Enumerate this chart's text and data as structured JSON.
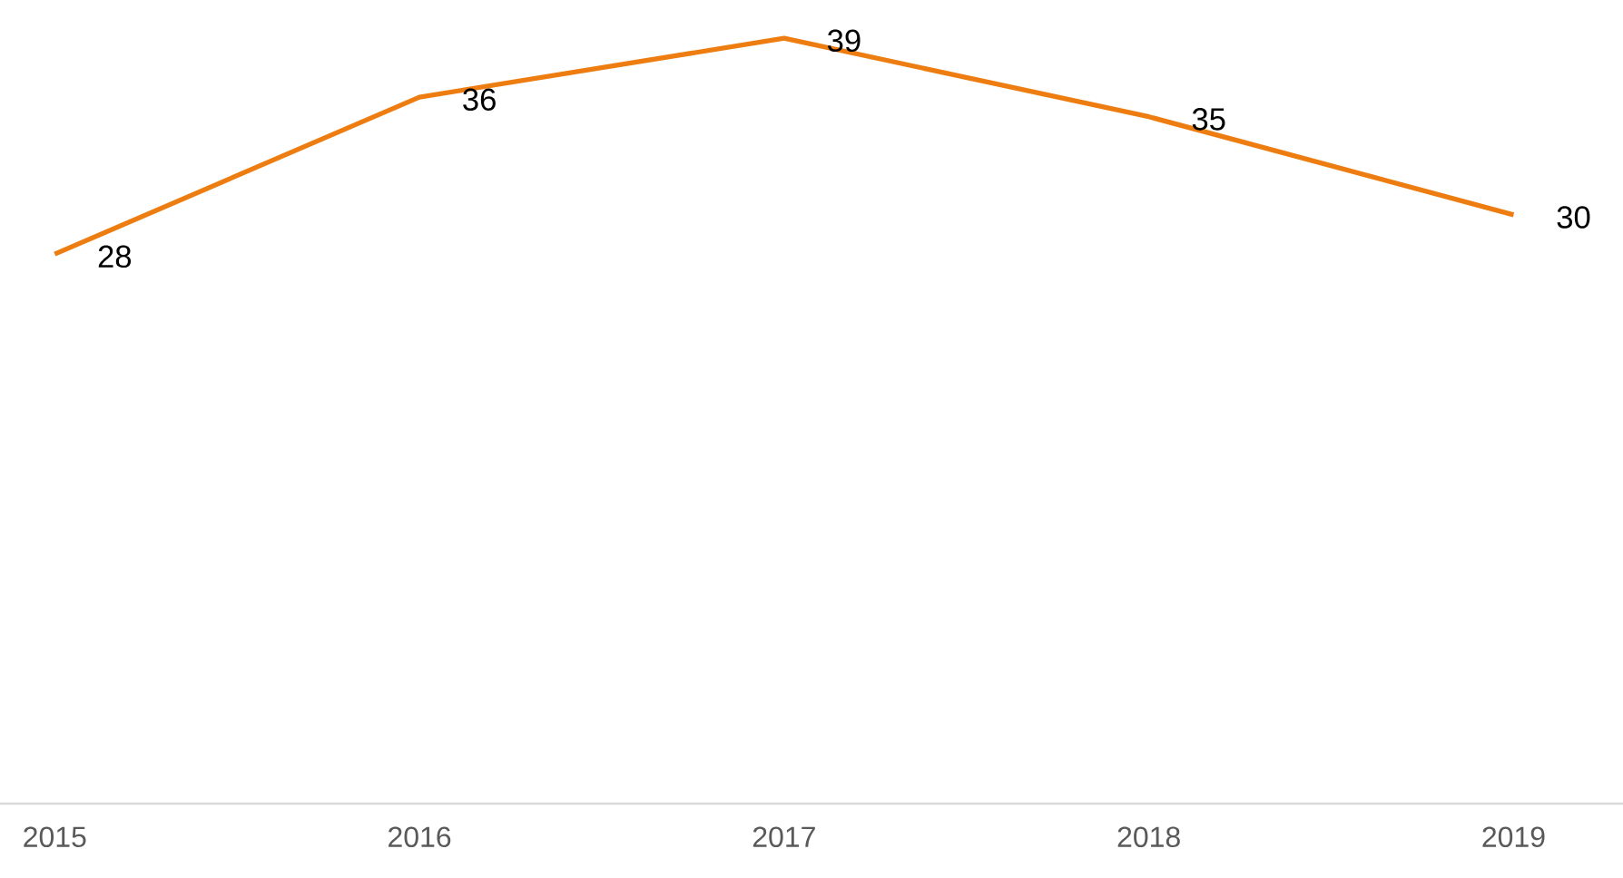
{
  "chart_data": {
    "type": "line",
    "categories": [
      "2015",
      "2016",
      "2017",
      "2018",
      "2019"
    ],
    "values": [
      28,
      36,
      39,
      35,
      30
    ],
    "color": "#ee7d11",
    "data_labels": true,
    "tick_labels": "x",
    "marker": "none"
  }
}
